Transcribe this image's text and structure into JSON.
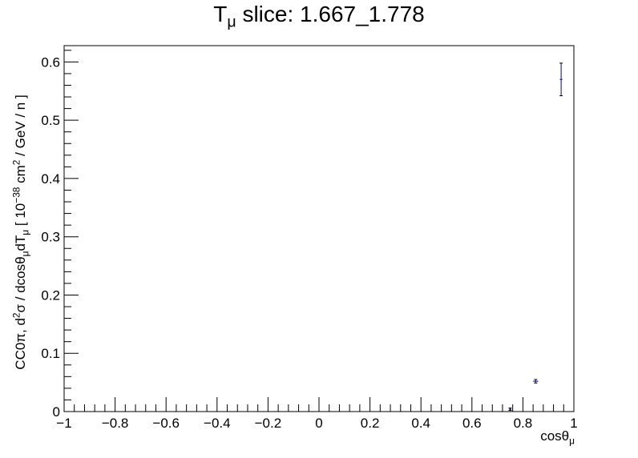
{
  "chart_data": {
    "type": "scatter",
    "title": {
      "main": "T",
      "sub": "μ",
      "rest": " slice: 1.667_1.778"
    },
    "xlabel": {
      "main": "cosθ",
      "sub": "μ"
    },
    "ylabel": {
      "p1": "CC0π, d",
      "sup1": "2",
      "p2": "σ / dcosθ",
      "sub1": "μ",
      "p3": "dT",
      "sub2": "μ",
      "p4": " [ 10",
      "sup2": "−38",
      "p5": " cm",
      "sup3": "2",
      "p6": " / GeV / n ]"
    },
    "xlim": [
      -1,
      1
    ],
    "ylim": [
      0,
      0.628
    ],
    "xticks": [
      -1,
      -0.8,
      -0.6,
      -0.4,
      -0.2,
      0,
      0.2,
      0.4,
      0.6,
      0.8,
      1
    ],
    "xtick_labels": [
      "−1",
      "−0.8",
      "−0.6",
      "−0.4",
      "−0.2",
      "0",
      "0.2",
      "0.4",
      "0.6",
      "0.8",
      "1"
    ],
    "yticks": [
      0,
      0.1,
      0.2,
      0.3,
      0.4,
      0.5,
      0.6
    ],
    "ytick_labels": [
      "0",
      "0.1",
      "0.2",
      "0.3",
      "0.4",
      "0.5",
      "0.6"
    ],
    "grid": false,
    "legend": "none",
    "marker_color": "#000099",
    "points": [
      {
        "x": 0.75,
        "xerr": 0.005,
        "y": 0.004,
        "yerr": 0.002
      },
      {
        "x": 0.85,
        "xerr": 0.01,
        "y": 0.052,
        "yerr": 0.003
      },
      {
        "x": 0.95,
        "xerr": 0.005,
        "y": 0.57,
        "yerr": 0.028
      }
    ]
  }
}
